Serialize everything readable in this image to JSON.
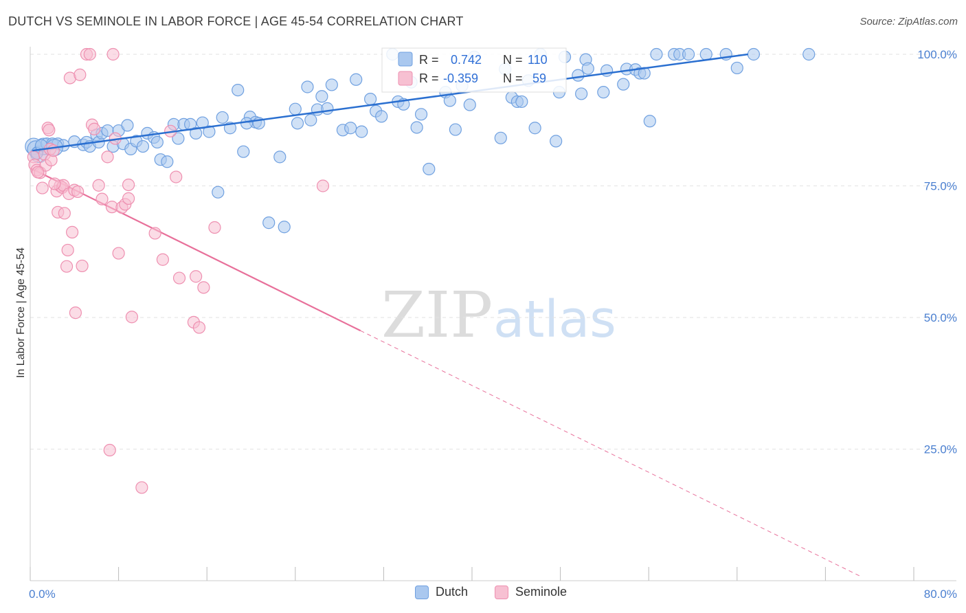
{
  "header": {
    "title": "DUTCH VS SEMINOLE IN LABOR FORCE | AGE 45-54 CORRELATION CHART",
    "source": "Source: ZipAtlas.com"
  },
  "watermark": {
    "zip": "ZIP",
    "atlas": "atlas"
  },
  "legend": {
    "rows": [
      {
        "r_label": "R =",
        "r_value": "0.742",
        "n_label": "N =",
        "n_value": "110"
      },
      {
        "r_label": "R =",
        "r_value": "-0.359",
        "n_label": "N =",
        "n_value": "59"
      }
    ]
  },
  "bottom_legend": {
    "dutch": "Dutch",
    "seminole": "Seminole"
  },
  "colors": {
    "dutch_fill": "#aac8ef",
    "dutch_stroke": "#6fa0e0",
    "dutch_line": "#2a6fd0",
    "seminole_fill": "#f7c0d2",
    "seminole_stroke": "#ee8fb0",
    "seminole_line": "#e8709a",
    "axis_label": "#4a7fd0",
    "grid": "#e2e2e2"
  },
  "chart_data": {
    "type": "scatter",
    "title": "DUTCH VS SEMINOLE IN LABOR FORCE | AGE 45-54 CORRELATION CHART",
    "xlabel": "",
    "ylabel": "In Labor Force | Age 45-54",
    "xlim": [
      0,
      80
    ],
    "ylim": [
      0,
      100
    ],
    "x_tick_labels": [
      "0.0%",
      "80.0%"
    ],
    "y_tick_labels": [
      "100.0%",
      "75.0%",
      "50.0%",
      "25.0%"
    ],
    "y_ticks": [
      100,
      75,
      50,
      25
    ],
    "grid": true,
    "legend_position": "top-center",
    "series": [
      {
        "name": "Dutch",
        "R": 0.742,
        "N": 110,
        "trend": {
          "x": [
            0.2,
            65
          ],
          "y": [
            81.7,
            100
          ]
        },
        "points": [
          [
            0.3,
            82.5
          ],
          [
            0.5,
            82
          ],
          [
            0.8,
            81
          ],
          [
            1.2,
            82.5
          ],
          [
            1.5,
            83
          ],
          [
            2,
            83
          ],
          [
            2.5,
            83
          ],
          [
            3,
            82.7
          ],
          [
            4,
            83.4
          ],
          [
            4.8,
            82.8
          ],
          [
            5.1,
            83.3
          ],
          [
            5.4,
            82.5
          ],
          [
            6,
            84.7
          ],
          [
            6.2,
            83.3
          ],
          [
            6.5,
            85
          ],
          [
            7,
            85.5
          ],
          [
            7.5,
            82.5
          ],
          [
            8,
            85.5
          ],
          [
            8.4,
            83
          ],
          [
            8.8,
            86.5
          ],
          [
            9.1,
            82
          ],
          [
            9.6,
            83.5
          ],
          [
            10.2,
            82.5
          ],
          [
            10.6,
            85
          ],
          [
            11.2,
            84.2
          ],
          [
            11.5,
            83.3
          ],
          [
            11.8,
            80
          ],
          [
            12.4,
            79.6
          ],
          [
            13,
            86.7
          ],
          [
            13.4,
            84
          ],
          [
            13.9,
            86.7
          ],
          [
            14.5,
            86.7
          ],
          [
            15,
            85
          ],
          [
            15.6,
            87
          ],
          [
            16.2,
            85.3
          ],
          [
            17,
            73.8
          ],
          [
            17.4,
            88
          ],
          [
            18.1,
            86
          ],
          [
            18.8,
            93.2
          ],
          [
            19.3,
            81.5
          ],
          [
            19.9,
            88.1
          ],
          [
            20.4,
            87.1
          ],
          [
            20.7,
            86.9
          ],
          [
            21.6,
            68
          ],
          [
            22.6,
            80.5
          ],
          [
            23,
            67.2
          ],
          [
            24,
            89.6
          ],
          [
            24.2,
            86.9
          ],
          [
            25.1,
            93.8
          ],
          [
            25.4,
            87.5
          ],
          [
            26,
            89.5
          ],
          [
            26.4,
            92
          ],
          [
            26.9,
            89.7
          ],
          [
            27.3,
            94.2
          ],
          [
            28.3,
            85.6
          ],
          [
            29,
            86
          ],
          [
            29.5,
            95.2
          ],
          [
            30,
            85.3
          ],
          [
            30.8,
            91.5
          ],
          [
            31.3,
            89.2
          ],
          [
            31.8,
            88.2
          ],
          [
            32.8,
            100
          ],
          [
            33.3,
            91
          ],
          [
            33.8,
            90.5
          ],
          [
            34.5,
            94.7
          ],
          [
            35,
            86.1
          ],
          [
            35.4,
            88.6
          ],
          [
            36.1,
            78.2
          ],
          [
            37.6,
            92.8
          ],
          [
            38,
            91.2
          ],
          [
            38.5,
            85.7
          ],
          [
            39.1,
            94
          ],
          [
            39.8,
            90.4
          ],
          [
            40.2,
            99.5
          ],
          [
            42.6,
            84.1
          ],
          [
            43,
            97.2
          ],
          [
            43.6,
            91.8
          ],
          [
            44.1,
            91
          ],
          [
            44.5,
            91
          ],
          [
            45.1,
            95
          ],
          [
            45.7,
            86
          ],
          [
            46.2,
            100
          ],
          [
            47.6,
            83.5
          ],
          [
            47.9,
            92.8
          ],
          [
            48.4,
            99.5
          ],
          [
            49.6,
            96
          ],
          [
            49.9,
            92.5
          ],
          [
            50.3,
            99
          ],
          [
            50.5,
            97.3
          ],
          [
            51.9,
            92.8
          ],
          [
            52.2,
            96.9
          ],
          [
            53.7,
            94.3
          ],
          [
            54,
            97.2
          ],
          [
            54.8,
            97.1
          ],
          [
            55.2,
            96.4
          ],
          [
            55.6,
            96.4
          ],
          [
            56.1,
            87.3
          ],
          [
            56.7,
            100
          ],
          [
            58.3,
            100
          ],
          [
            58.8,
            100
          ],
          [
            59.6,
            100
          ],
          [
            61.2,
            100
          ],
          [
            63,
            100
          ],
          [
            64,
            97.4
          ],
          [
            65.5,
            100
          ],
          [
            70.5,
            100
          ],
          [
            0.6,
            81.2
          ],
          [
            1,
            82.7
          ],
          [
            2.2,
            82.3
          ],
          [
            19.6,
            86.9
          ]
        ]
      },
      {
        "name": "Seminole",
        "R": -0.359,
        "N": 59,
        "trend": {
          "x": [
            0.1,
            29.9
          ],
          "y": [
            78.3,
            47.5
          ]
        },
        "trend_dashed": {
          "x": [
            29.9,
            75.3
          ],
          "y": [
            47.5,
            0.7
          ]
        },
        "points": [
          [
            0.3,
            80.5
          ],
          [
            0.4,
            79
          ],
          [
            0.6,
            78
          ],
          [
            0.9,
            77.5
          ],
          [
            1.1,
            74.6
          ],
          [
            1.3,
            81
          ],
          [
            1.4,
            78.9
          ],
          [
            1.6,
            86
          ],
          [
            1.7,
            85.6
          ],
          [
            1.8,
            82
          ],
          [
            1.9,
            79.9
          ],
          [
            2.1,
            81.7
          ],
          [
            2.4,
            74
          ],
          [
            2.5,
            70
          ],
          [
            2.7,
            75
          ],
          [
            2.9,
            74.7
          ],
          [
            3,
            75.1
          ],
          [
            3.1,
            69.8
          ],
          [
            3.3,
            59.7
          ],
          [
            3.4,
            62.8
          ],
          [
            3.5,
            73.5
          ],
          [
            3.6,
            95.5
          ],
          [
            3.8,
            66.2
          ],
          [
            4,
            74.2
          ],
          [
            4.1,
            50.9
          ],
          [
            4.3,
            73.9
          ],
          [
            4.5,
            96.1
          ],
          [
            4.7,
            59.8
          ],
          [
            5.1,
            100
          ],
          [
            5.4,
            100
          ],
          [
            5.6,
            86.6
          ],
          [
            5.8,
            85.8
          ],
          [
            6.2,
            75.1
          ],
          [
            6.5,
            72.5
          ],
          [
            7,
            80.5
          ],
          [
            7.2,
            24.8
          ],
          [
            7.4,
            71
          ],
          [
            7.5,
            100
          ],
          [
            7.7,
            84
          ],
          [
            8,
            62.2
          ],
          [
            8.3,
            70.9
          ],
          [
            8.6,
            71.5
          ],
          [
            8.9,
            72.6
          ],
          [
            8.9,
            75.2
          ],
          [
            9.2,
            50.1
          ],
          [
            10.1,
            17.7
          ],
          [
            11.3,
            66
          ],
          [
            12,
            61
          ],
          [
            12.7,
            85.4
          ],
          [
            13.2,
            76.7
          ],
          [
            13.5,
            57.5
          ],
          [
            14.8,
            49.1
          ],
          [
            15,
            57.8
          ],
          [
            15.3,
            48.1
          ],
          [
            15.7,
            55.7
          ],
          [
            16.7,
            67.1
          ],
          [
            0.7,
            77.6
          ],
          [
            2.2,
            75.4
          ],
          [
            26.5,
            75
          ]
        ]
      }
    ]
  }
}
